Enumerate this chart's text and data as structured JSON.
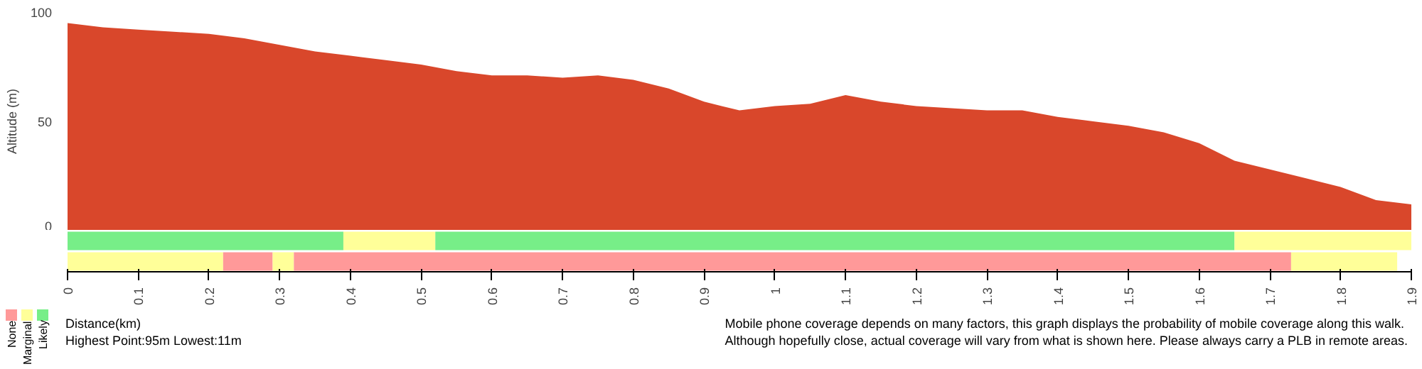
{
  "chart_data": [
    {
      "type": "area",
      "ylabel": "Altitude (m)",
      "color": "#d9472b",
      "x": [
        0,
        0.05,
        0.1,
        0.15,
        0.2,
        0.25,
        0.3,
        0.35,
        0.4,
        0.45,
        0.5,
        0.55,
        0.6,
        0.65,
        0.7,
        0.75,
        0.8,
        0.85,
        0.9,
        0.95,
        1.0,
        1.05,
        1.1,
        1.15,
        1.2,
        1.25,
        1.3,
        1.35,
        1.4,
        1.45,
        1.5,
        1.55,
        1.6,
        1.65,
        1.7,
        1.75,
        1.8,
        1.85,
        1.9
      ],
      "values": [
        95,
        93,
        92,
        91,
        90,
        88,
        85,
        82,
        80,
        78,
        76,
        73,
        71,
        71,
        70,
        71,
        69,
        65,
        59,
        55,
        57,
        58,
        62,
        59,
        57,
        56,
        55,
        55,
        52,
        50,
        48,
        45,
        40,
        32,
        28,
        24,
        20,
        14,
        12
      ],
      "xlim": [
        0,
        1.9
      ],
      "ylim": [
        0,
        100
      ],
      "yticks": [
        0,
        50,
        100
      ],
      "tick_labels": "y"
    },
    {
      "type": "bar",
      "orientation": "horizontal",
      "stacked": true,
      "categories": [
        null,
        null
      ],
      "xlabel": "Distance(km)",
      "xlim": [
        0,
        1.9
      ],
      "xticks": [
        0,
        0.1,
        0.2,
        0.3,
        0.4,
        0.5,
        0.6,
        0.7,
        0.8,
        0.9,
        1,
        1.1,
        1.2,
        1.3,
        1.4,
        1.5,
        1.6,
        1.7,
        1.8,
        1.9
      ],
      "series": [
        {
          "values": [
            0.39,
            0.22
          ],
          "colors": [
            "#77ee88",
            "#ffff99"
          ]
        },
        {
          "values": [
            0.13,
            0.07
          ],
          "colors": [
            "#ffff99",
            "#ff9999"
          ]
        },
        {
          "values": [
            1.13,
            0.03
          ],
          "colors": [
            "#77ee88",
            "#ffff99"
          ]
        },
        {
          "values": [
            0.25,
            1.41
          ],
          "colors": [
            "#ffff99",
            "#ff9999"
          ]
        },
        {
          "values": [
            null,
            0.15
          ],
          "colors": [
            null,
            "#ffff99"
          ]
        }
      ],
      "annotations": [
        "None",
        "Marginal",
        "Likely",
        "Highest Point:95m Lowest:11m",
        "Mobile phone coverage depends on many factors, this graph displays the probability of mobile coverage along this walk.\nAlthough hopefully close, actual coverage will vary from what is shown here. Please always carry a PLB in remote areas."
      ]
    }
  ]
}
